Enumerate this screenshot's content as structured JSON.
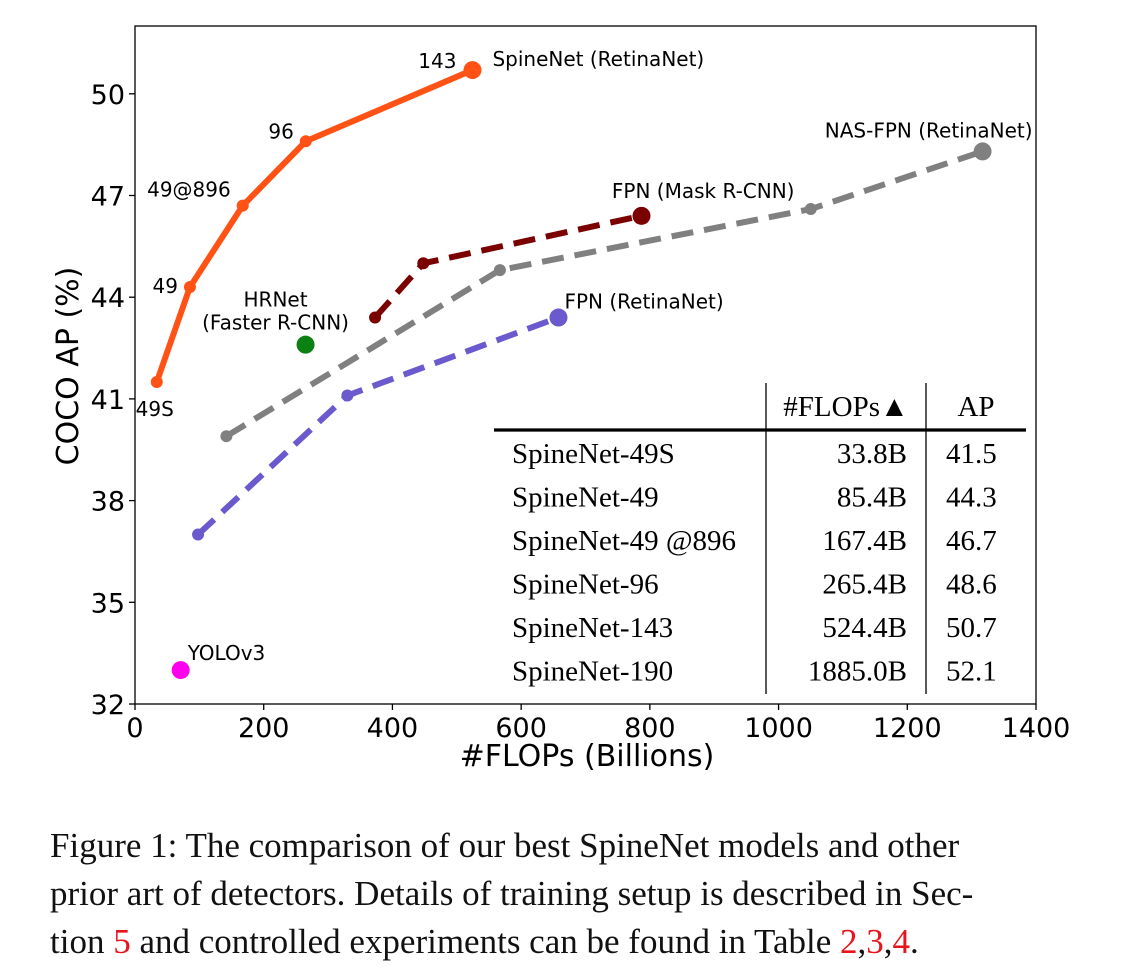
{
  "chart_data": {
    "type": "line",
    "xlabel": "#FLOPs (Billions)",
    "ylabel": "COCO AP (%)",
    "xlim": [
      0,
      1400
    ],
    "ylim": [
      32,
      52
    ],
    "xticks": [
      0,
      200,
      400,
      600,
      800,
      1000,
      1200,
      1400
    ],
    "xtick_labels": [
      "0",
      "200",
      "400",
      "600",
      "800",
      "1000",
      "1200",
      "1400"
    ],
    "yticks": [
      32,
      35,
      38,
      41,
      44,
      47,
      50
    ],
    "ytick_labels": [
      "32",
      "35",
      "38",
      "41",
      "44",
      "47",
      "50"
    ],
    "grid": false,
    "series": [
      {
        "name": "SpineNet (RetinaNet)",
        "color": "#ff5214",
        "dash": "solid",
        "x": [
          33.8,
          85.4,
          167.4,
          265.4,
          524.4
        ],
        "y": [
          41.5,
          44.3,
          46.7,
          48.6,
          50.7
        ],
        "point_labels": [
          "49S",
          "49",
          "49@896",
          "96",
          "143"
        ]
      },
      {
        "name": "NAS-FPN (RetinaNet)",
        "color": "#808080",
        "dash": "dashed",
        "x": [
          142,
          567,
          1050,
          1317
        ],
        "y": [
          39.9,
          44.8,
          46.6,
          48.3
        ],
        "point_labels": []
      },
      {
        "name": "FPN (Mask R-CNN)",
        "color": "#7b0000",
        "dash": "dashed",
        "x": [
          373,
          448,
          787
        ],
        "y": [
          43.4,
          45.0,
          46.4
        ],
        "point_labels": []
      },
      {
        "name": "FPN (RetinaNet)",
        "color": "#6a5acd",
        "dash": "dashed",
        "x": [
          98,
          330,
          658
        ],
        "y": [
          37.0,
          41.1,
          43.4
        ],
        "point_labels": []
      },
      {
        "name": "HRNet\n(Faster R-CNN)",
        "color": "#0b8013",
        "dash": "none",
        "x": [
          265
        ],
        "y": [
          42.6
        ],
        "point_labels": []
      },
      {
        "name": "YOLOv3",
        "color": "#ff00ee",
        "dash": "none",
        "x": [
          71
        ],
        "y": [
          33.0
        ],
        "point_labels": []
      }
    ],
    "table": {
      "headers": [
        "",
        "#FLOPs▲",
        "AP"
      ],
      "rows": [
        [
          "SpineNet-49S",
          "33.8B",
          "41.5"
        ],
        [
          "SpineNet-49",
          "85.4B",
          "44.3"
        ],
        [
          "SpineNet-49 @896",
          "167.4B",
          "46.7"
        ],
        [
          "SpineNet-96",
          "265.4B",
          "48.6"
        ],
        [
          "SpineNet-143",
          "524.4B",
          "50.7"
        ],
        [
          "SpineNet-190",
          "1885.0B",
          "52.1"
        ]
      ]
    }
  },
  "caption": {
    "line1": "Figure 1: The comparison of our best SpineNet models and other",
    "line2": "prior art of detectors. Details of training setup is described in Sec-",
    "line3_pre": "tion ",
    "line3_ref1": "5",
    "line3_mid": " and controlled experiments can be found in Table ",
    "line3_ref2": "2",
    "line3_sep1": ",",
    "line3_ref3": "3",
    "line3_sep2": ",",
    "line3_ref4": "4",
    "line3_post": "."
  }
}
